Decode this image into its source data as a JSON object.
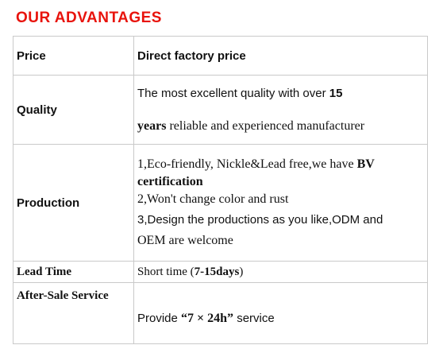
{
  "title": "OUR ADVANTAGES",
  "rows": [
    {
      "label": "Price",
      "value": "Direct factory price"
    },
    {
      "label": "Quality",
      "line1_a": "The most excellent quality with over ",
      "line1_b": "15",
      "line2_a": "years",
      "line2_b": " reliable and experienced manufacturer"
    },
    {
      "label": "Production",
      "l1_a": "1,Eco-friendly, Nickle&Lead free,we have ",
      "l1_b": "BV",
      "l2": "certification",
      "l3": "2,Won't change color and rust",
      "l4": "3,Design the productions as you like,ODM and",
      "l5": "OEM are welcome"
    },
    {
      "label": "Lead Time",
      "value_a": "Short time (",
      "value_b": "7-15days",
      "value_c": ")"
    },
    {
      "label": "After-Sale Service",
      "value_a": "Provide ",
      "value_b": "“7 × 24h”",
      "value_c": " service"
    }
  ],
  "colors": {
    "title": "#e8130c",
    "border": "#c9c9c9"
  }
}
